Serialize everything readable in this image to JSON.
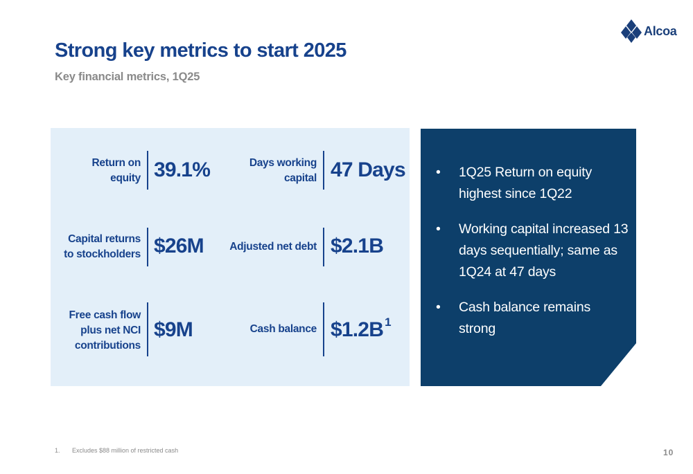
{
  "logo": {
    "text": "Alcoa"
  },
  "title": "Strong key metrics to start 2025",
  "subtitle": "Key financial metrics, 1Q25",
  "metrics": [
    {
      "label": "Return on\nequity",
      "value": "39.1%"
    },
    {
      "label": "Days working\ncapital",
      "value": "47 Days"
    },
    {
      "label": "Capital returns\nto stockholders",
      "value": "$26M"
    },
    {
      "label": "Adjusted net debt",
      "value": "$2.1B"
    },
    {
      "label": "Free cash flow\nplus net NCI\ncontributions",
      "value": "$9M"
    },
    {
      "label": "Cash balance",
      "value": "$1.2B",
      "superscript": "1"
    }
  ],
  "highlights": [
    "1Q25 Return on equity highest since 1Q22",
    "Working capital increased 13 days sequentially; same as 1Q24 at 47 days",
    "Cash balance remains strong"
  ],
  "footnote": {
    "number": "1.",
    "text": "Excludes $88 million of restricted cash"
  },
  "page_number": "10",
  "colors": {
    "brand_blue": "#17428c",
    "panel_light": "#e3eff9",
    "panel_dark": "#0d3f6a",
    "muted_gray": "#8a8a8a"
  }
}
